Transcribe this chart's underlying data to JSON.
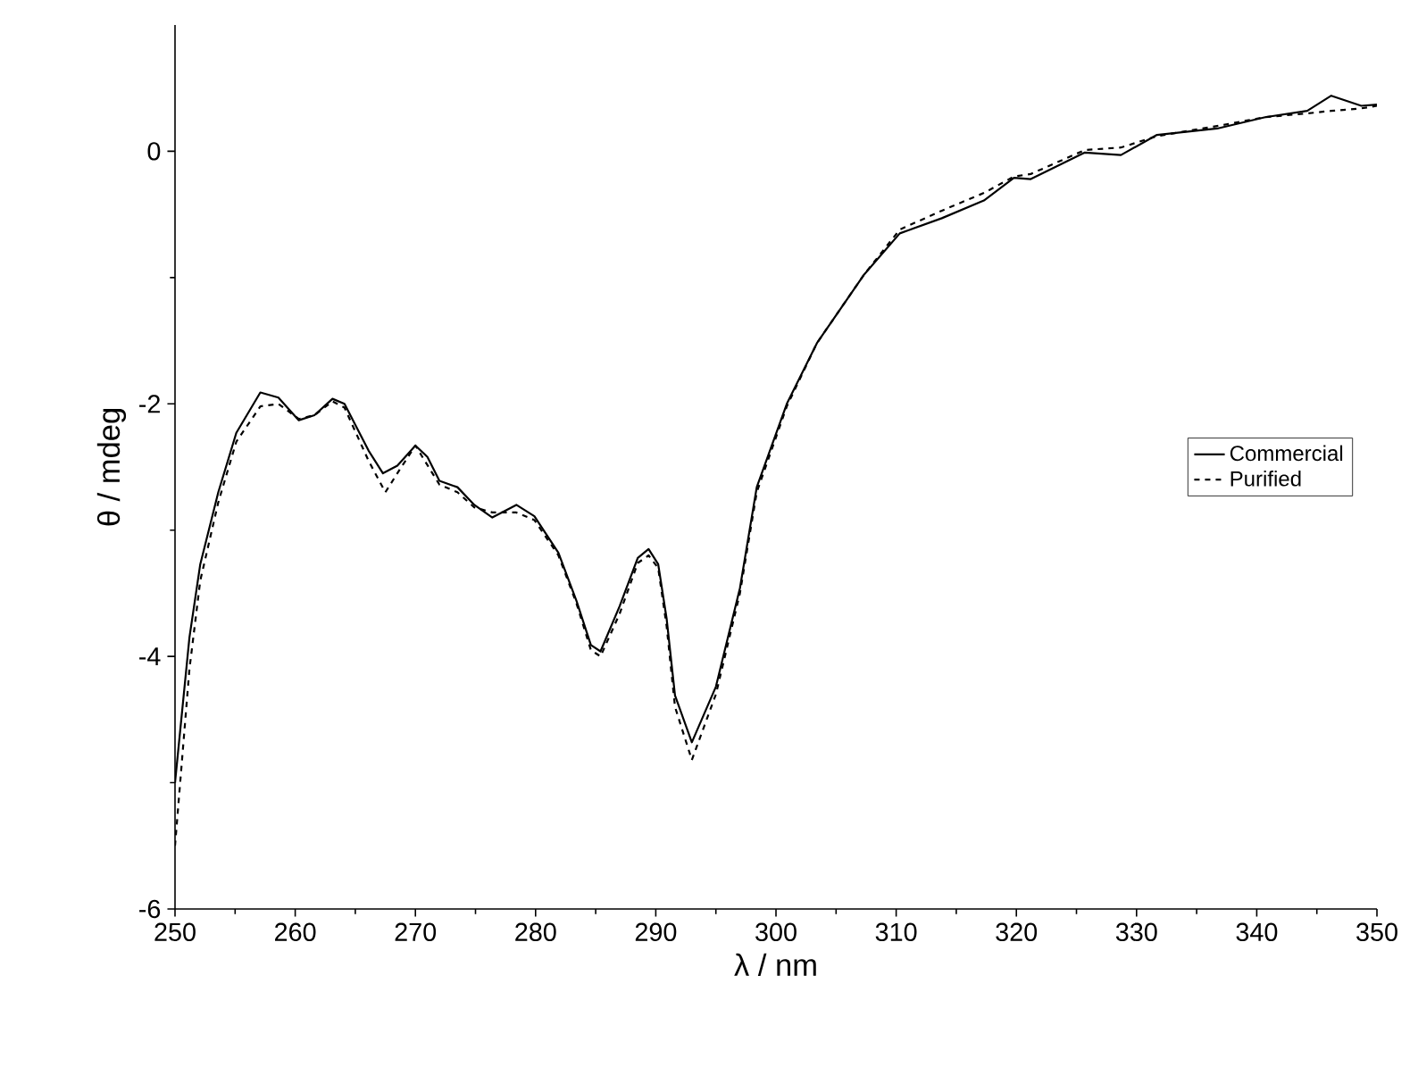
{
  "chart_data": {
    "type": "line",
    "xlabel": "λ / nm",
    "ylabel": "θ / mdeg",
    "xlim": [
      250,
      350
    ],
    "ylim": [
      -6,
      1
    ],
    "xticks": [
      250,
      260,
      270,
      280,
      290,
      300,
      310,
      320,
      330,
      340,
      350
    ],
    "yticks": [
      -6,
      -4,
      -2,
      0
    ],
    "legend": "right",
    "grid": false,
    "marker": "none",
    "series": [
      {
        "name": "Commercial",
        "color": "#000000",
        "line_style": "solid",
        "x": [
          250,
          251.2,
          252.1,
          253.6,
          255.1,
          257.1,
          258.6,
          260.3,
          261.6,
          263.1,
          264.1,
          266.1,
          267.3,
          268.5,
          270,
          271,
          272,
          273.5,
          274.9,
          276.4,
          278.4,
          279.9,
          281.9,
          283.4,
          284.6,
          285.4,
          287,
          288.5,
          289.4,
          290.2,
          290.9,
          291.6,
          293,
          295,
          297,
          298.4,
          300.9,
          303.4,
          307.3,
          310.3,
          313.8,
          317.3,
          319.8,
          321.2,
          325.7,
          328.7,
          331.7,
          336.7,
          340.7,
          344.2,
          346.2,
          348.7,
          350
        ],
        "values": [
          -5.0,
          -3.85,
          -3.27,
          -2.7,
          -2.23,
          -1.91,
          -1.95,
          -2.13,
          -2.09,
          -1.96,
          -2.0,
          -2.37,
          -2.55,
          -2.49,
          -2.33,
          -2.42,
          -2.61,
          -2.66,
          -2.8,
          -2.9,
          -2.8,
          -2.89,
          -3.18,
          -3.56,
          -3.91,
          -3.96,
          -3.6,
          -3.22,
          -3.15,
          -3.27,
          -3.7,
          -4.31,
          -4.68,
          -4.24,
          -3.46,
          -2.66,
          -2.0,
          -1.52,
          -0.98,
          -0.65,
          -0.53,
          -0.39,
          -0.21,
          -0.22,
          -0.01,
          -0.03,
          0.13,
          0.18,
          0.27,
          0.32,
          0.44,
          0.36,
          0.37
        ]
      },
      {
        "name": "Purified",
        "color": "#000000",
        "line_style": "dashed",
        "x": [
          250,
          251.2,
          252.1,
          253.6,
          255.1,
          257.1,
          258.6,
          260.3,
          261.6,
          263.1,
          264.1,
          266.1,
          267.5,
          268.7,
          270,
          272,
          273.5,
          274.9,
          276.4,
          278.4,
          279.9,
          281.9,
          283.4,
          284.6,
          285.4,
          287,
          288.5,
          289.4,
          290.2,
          290.9,
          291.6,
          293,
          295,
          297,
          298.4,
          300.9,
          303.4,
          307.3,
          310.3,
          313.8,
          317.3,
          319.8,
          321.2,
          325.7,
          328.7,
          331.7,
          336.7,
          340.7,
          344.2,
          346.2,
          348.7,
          350
        ],
        "values": [
          -5.5,
          -4.1,
          -3.4,
          -2.78,
          -2.3,
          -2.02,
          -2.0,
          -2.12,
          -2.09,
          -1.98,
          -2.03,
          -2.45,
          -2.7,
          -2.52,
          -2.33,
          -2.64,
          -2.7,
          -2.82,
          -2.86,
          -2.86,
          -2.92,
          -3.2,
          -3.58,
          -3.95,
          -4.0,
          -3.66,
          -3.26,
          -3.2,
          -3.3,
          -3.76,
          -4.4,
          -4.82,
          -4.3,
          -3.5,
          -2.7,
          -2.02,
          -1.52,
          -0.98,
          -0.62,
          -0.47,
          -0.33,
          -0.2,
          -0.18,
          0.01,
          0.03,
          0.12,
          0.2,
          0.27,
          0.3,
          0.32,
          0.34,
          0.36
        ]
      }
    ]
  }
}
